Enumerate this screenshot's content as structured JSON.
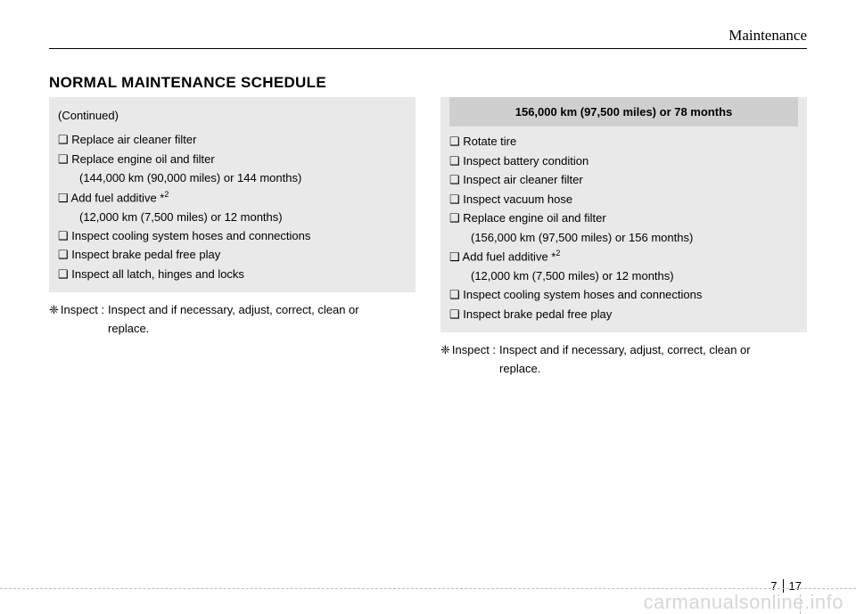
{
  "header": {
    "section_title": "Maintenance"
  },
  "heading": "NORMAL MAINTENANCE SCHEDULE",
  "left": {
    "continued": "(Continued)",
    "items": [
      {
        "text": "❑ Replace air cleaner filter"
      },
      {
        "text": "❑ Replace engine oil and filter"
      },
      {
        "text": "(144,000 km (90,000 miles) or 144 months)",
        "sub": true
      },
      {
        "text": "❑ Add fuel additive *",
        "sup": "2"
      },
      {
        "text": "(12,000 km (7,500 miles) or 12 months)",
        "sub": true
      },
      {
        "text": "❑ Inspect cooling system hoses and connections"
      },
      {
        "text": "❑ Inspect brake pedal free play"
      },
      {
        "text": "❑ Inspect all latch, hinges and locks"
      }
    ],
    "note_symbol": "❈",
    "note_label": "Inspect :",
    "note_line1": "Inspect and if necessary, adjust, correct, clean or",
    "note_line2": "replace."
  },
  "right": {
    "header": "156,000 km (97,500 miles) or 78 months",
    "items": [
      {
        "text": "❑ Rotate tire"
      },
      {
        "text": "❑ Inspect battery condition"
      },
      {
        "text": "❑ Inspect air cleaner filter"
      },
      {
        "text": "❑ Inspect vacuum hose"
      },
      {
        "text": "❑ Replace engine oil and filter"
      },
      {
        "text": "(156,000 km (97,500 miles) or 156 months)",
        "sub": true
      },
      {
        "text": "❑ Add fuel additive *",
        "sup": "2"
      },
      {
        "text": "(12,000 km (7,500 miles) or 12 months)",
        "sub": true
      },
      {
        "text": "❑ Inspect cooling system hoses and connections"
      },
      {
        "text": "❑ Inspect brake pedal free play"
      }
    ],
    "note_symbol": "❈",
    "note_label": "Inspect :",
    "note_line1": "Inspect and if necessary, adjust, correct, clean or",
    "note_line2": "replace."
  },
  "footer": {
    "chapter": "7",
    "page": "17"
  },
  "watermark": "carmanualsonline.info"
}
